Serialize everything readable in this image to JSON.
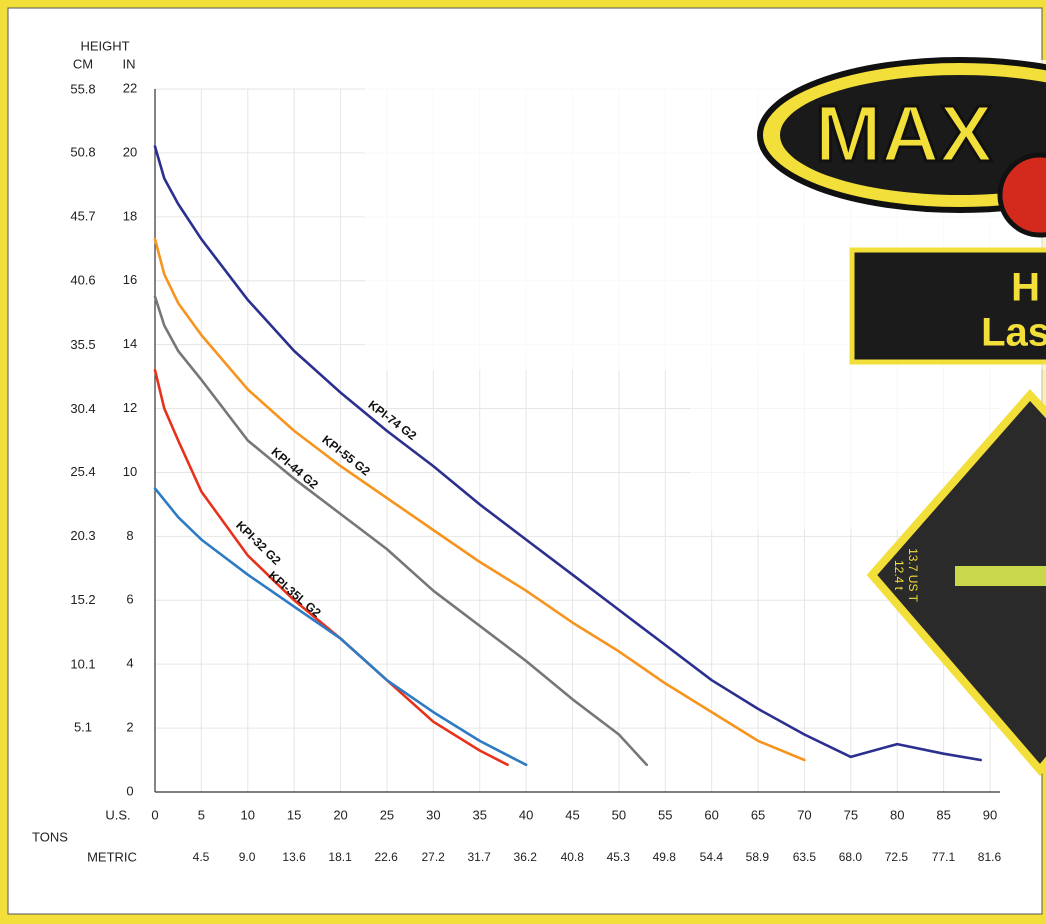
{
  "chart_data": {
    "type": "line",
    "y_header": "HEIGHT",
    "y_label": "IN",
    "y2_label": "CM",
    "x_label": "U.S.",
    "x_group_label": "TONS",
    "x2_label": "METRIC",
    "xlim": [
      0,
      90
    ],
    "xticks": [
      0,
      5,
      10,
      15,
      20,
      25,
      30,
      35,
      40,
      45,
      50,
      55,
      60,
      65,
      70,
      75,
      80,
      85,
      90
    ],
    "x2lim": [
      0,
      81.65
    ],
    "x2ticks": [
      4.5,
      {
        "value": 9,
        "label": "9.0"
      },
      13.6,
      18.1,
      22.6,
      27.2,
      31.7,
      36.2,
      40.8,
      45.3,
      49.8,
      54.4,
      58.9,
      63.5,
      {
        "value": 68,
        "label": "68.0"
      },
      72.5,
      77.1,
      81.6
    ],
    "ylim": [
      0,
      22
    ],
    "yticks": [
      0,
      2,
      4,
      6,
      8,
      10,
      12,
      14,
      16,
      18,
      20,
      22
    ],
    "y2lim": [
      0,
      55.88
    ],
    "y2ticks": [
      5.1,
      10.1,
      15.2,
      20.3,
      25.4,
      30.4,
      35.5,
      40.6,
      45.7,
      50.8,
      55.8
    ],
    "grid": true,
    "series": [
      {
        "name": "KPI-74 G2",
        "color": "#2b2f8f",
        "x": [
          0,
          1,
          2.5,
          5,
          10,
          15,
          20,
          25,
          30,
          35,
          40,
          45,
          50,
          55,
          60,
          65,
          70,
          75,
          80,
          85,
          89
        ],
        "values": [
          20.2,
          19.2,
          18.4,
          17.3,
          15.4,
          13.8,
          12.5,
          11.3,
          10.2,
          9.0,
          7.9,
          6.8,
          5.7,
          4.6,
          3.5,
          2.6,
          1.8,
          1.1,
          1.5,
          1.2,
          1.0
        ]
      },
      {
        "name": "KPI-55 G2",
        "color": "#f7941d",
        "x": [
          0,
          1,
          2.5,
          5,
          10,
          15,
          20,
          25,
          30,
          35,
          40,
          45,
          50,
          55,
          60,
          65,
          70
        ],
        "values": [
          17.3,
          16.2,
          15.3,
          14.3,
          12.6,
          11.3,
          10.2,
          9.2,
          8.2,
          7.2,
          6.3,
          5.3,
          4.4,
          3.4,
          2.5,
          1.6,
          1.0
        ]
      },
      {
        "name": "KPI-44 G2",
        "color": "#777777",
        "x": [
          0,
          1,
          2.5,
          5,
          10,
          15,
          20,
          25,
          30,
          35,
          40,
          45,
          50,
          53
        ],
        "values": [
          15.5,
          14.6,
          13.8,
          12.9,
          11.0,
          9.8,
          8.7,
          7.6,
          6.3,
          5.2,
          4.1,
          2.9,
          1.8,
          0.85
        ]
      },
      {
        "name": "KPI-32 G2",
        "color": "#e8311a",
        "x": [
          0,
          1,
          2.5,
          5,
          10,
          15,
          20,
          25,
          30,
          35,
          38
        ],
        "values": [
          13.2,
          12.0,
          11.0,
          9.4,
          7.4,
          6.0,
          4.8,
          3.5,
          2.2,
          1.3,
          0.85
        ]
      },
      {
        "name": "KPI-35L G2",
        "color": "#2e7bc4",
        "x": [
          0,
          2.5,
          5,
          10,
          15,
          20,
          25,
          30,
          35,
          40
        ],
        "values": [
          9.5,
          8.6,
          7.9,
          6.8,
          5.8,
          4.8,
          3.5,
          2.5,
          1.6,
          0.85
        ]
      }
    ]
  },
  "overlay": {
    "logo": "MAX",
    "banner_line1": "H",
    "banner_line2": "Las",
    "badge_line1": "13.7 US T",
    "badge_line2": "12.4 t"
  }
}
